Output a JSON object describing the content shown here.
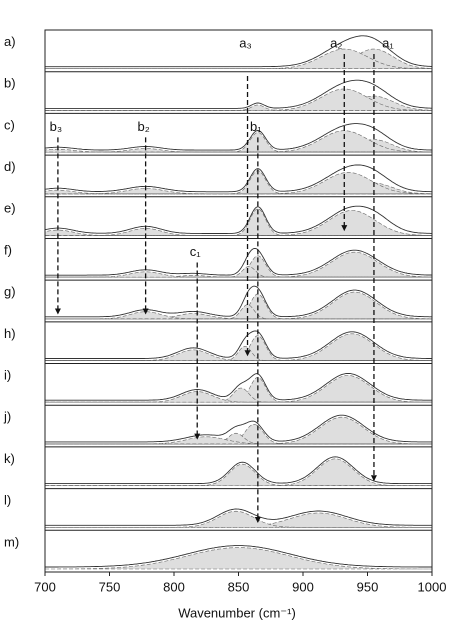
{
  "chart_data": {
    "type": "stacked-spectra",
    "x_label": "Wavenumber (cm⁻¹)",
    "xlim": [
      700,
      1000
    ],
    "xticks": [
      700,
      750,
      800,
      850,
      900,
      950,
      1000
    ],
    "ylim": [
      0,
      1
    ],
    "fill_color": "#dedede",
    "line_color": "#333333",
    "panels": [
      {
        "label": "a)",
        "components": [
          {
            "center": 955,
            "height": 0.55,
            "width": 15
          },
          {
            "center": 932,
            "height": 0.55,
            "width": 18
          }
        ]
      },
      {
        "label": "b)",
        "components": [
          {
            "center": 955,
            "height": 0.4,
            "width": 15
          },
          {
            "center": 932,
            "height": 0.6,
            "width": 18
          },
          {
            "center": 865,
            "height": 0.15,
            "width": 5
          }
        ]
      },
      {
        "label": "c)",
        "components": [
          {
            "center": 955,
            "height": 0.35,
            "width": 14
          },
          {
            "center": 932,
            "height": 0.6,
            "width": 18
          },
          {
            "center": 865,
            "height": 0.55,
            "width": 6
          },
          {
            "center": 778,
            "height": 0.1,
            "width": 12
          },
          {
            "center": 710,
            "height": 0.08,
            "width": 12
          }
        ]
      },
      {
        "label": "d)",
        "components": [
          {
            "center": 955,
            "height": 0.3,
            "width": 14
          },
          {
            "center": 935,
            "height": 0.6,
            "width": 18
          },
          {
            "center": 865,
            "height": 0.65,
            "width": 6
          },
          {
            "center": 778,
            "height": 0.15,
            "width": 14
          },
          {
            "center": 710,
            "height": 0.1,
            "width": 12
          }
        ]
      },
      {
        "label": "e)",
        "components": [
          {
            "center": 958,
            "height": 0.2,
            "width": 12
          },
          {
            "center": 938,
            "height": 0.7,
            "width": 18
          },
          {
            "center": 865,
            "height": 0.75,
            "width": 6
          },
          {
            "center": 778,
            "height": 0.2,
            "width": 12
          },
          {
            "center": 710,
            "height": 0.15,
            "width": 12
          }
        ]
      },
      {
        "label": "f)",
        "components": [
          {
            "center": 940,
            "height": 0.7,
            "width": 18
          },
          {
            "center": 865,
            "height": 0.6,
            "width": 6
          },
          {
            "center": 858,
            "height": 0.3,
            "width": 5
          },
          {
            "center": 815,
            "height": 0.05,
            "width": 10
          },
          {
            "center": 778,
            "height": 0.15,
            "width": 12
          }
        ]
      },
      {
        "label": "g)",
        "components": [
          {
            "center": 940,
            "height": 0.75,
            "width": 17
          },
          {
            "center": 865,
            "height": 0.7,
            "width": 6
          },
          {
            "center": 857,
            "height": 0.4,
            "width": 5
          },
          {
            "center": 815,
            "height": 0.15,
            "width": 12
          },
          {
            "center": 778,
            "height": 0.2,
            "width": 12
          }
        ]
      },
      {
        "label": "h)",
        "components": [
          {
            "center": 938,
            "height": 0.75,
            "width": 17
          },
          {
            "center": 865,
            "height": 0.7,
            "width": 6
          },
          {
            "center": 855,
            "height": 0.4,
            "width": 5
          },
          {
            "center": 815,
            "height": 0.3,
            "width": 12
          }
        ]
      },
      {
        "label": "i)",
        "components": [
          {
            "center": 935,
            "height": 0.75,
            "width": 17
          },
          {
            "center": 865,
            "height": 0.7,
            "width": 6
          },
          {
            "center": 852,
            "height": 0.4,
            "width": 6
          },
          {
            "center": 818,
            "height": 0.3,
            "width": 12
          }
        ]
      },
      {
        "label": "j)",
        "components": [
          {
            "center": 930,
            "height": 0.75,
            "width": 17
          },
          {
            "center": 862,
            "height": 0.55,
            "width": 7
          },
          {
            "center": 848,
            "height": 0.3,
            "width": 6
          },
          {
            "center": 825,
            "height": 0.2,
            "width": 15
          }
        ]
      },
      {
        "label": "k)",
        "components": [
          {
            "center": 925,
            "height": 0.75,
            "width": 14
          },
          {
            "center": 853,
            "height": 0.6,
            "width": 10
          }
        ]
      },
      {
        "label": "l)",
        "components": [
          {
            "center": 912,
            "height": 0.4,
            "width": 22
          },
          {
            "center": 848,
            "height": 0.45,
            "width": 14
          }
        ]
      },
      {
        "label": "m)",
        "components": [
          {
            "center": 850,
            "height": 0.6,
            "width": 40
          }
        ]
      }
    ],
    "annotations": [
      {
        "text": "a₁",
        "x": 955
      },
      {
        "text": "a₂",
        "x": 932
      },
      {
        "text": "a₃",
        "x": 857
      },
      {
        "text": "b₁",
        "x": 865
      },
      {
        "text": "b₂",
        "x": 778
      },
      {
        "text": "b₃",
        "x": 710
      },
      {
        "text": "c₁",
        "x": 818
      }
    ]
  }
}
